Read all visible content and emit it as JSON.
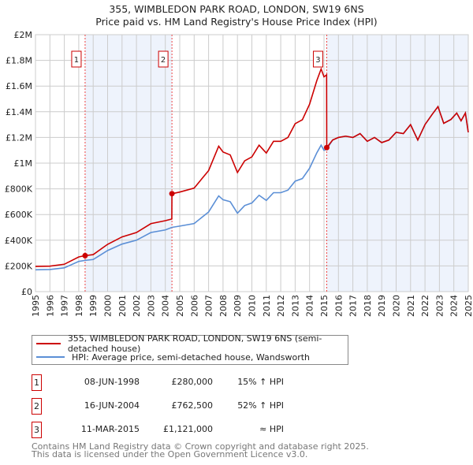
{
  "chart_data": {
    "type": "line",
    "title": "355, WIMBLEDON PARK ROAD, LONDON, SW19 6NS",
    "subtitle": "Price paid vs. HM Land Registry's House Price Index (HPI)",
    "xlim": [
      1995,
      2025
    ],
    "ylim": [
      0,
      2000000
    ],
    "yticks": [
      {
        "v": 0,
        "label": "£0"
      },
      {
        "v": 200000,
        "label": "£200K"
      },
      {
        "v": 400000,
        "label": "£400K"
      },
      {
        "v": 600000,
        "label": "£600K"
      },
      {
        "v": 800000,
        "label": "£800K"
      },
      {
        "v": 1000000,
        "label": "£1M"
      },
      {
        "v": 1200000,
        "label": "£1.2M"
      },
      {
        "v": 1400000,
        "label": "£1.4M"
      },
      {
        "v": 1600000,
        "label": "£1.6M"
      },
      {
        "v": 1800000,
        "label": "£1.8M"
      },
      {
        "v": 2000000,
        "label": "£2M"
      }
    ],
    "xticks": [
      "1995",
      "1996",
      "1997",
      "1998",
      "1999",
      "2000",
      "2001",
      "2002",
      "2003",
      "2004",
      "2005",
      "2006",
      "2007",
      "2008",
      "2009",
      "2010",
      "2011",
      "2012",
      "2013",
      "2014",
      "2015",
      "2016",
      "2017",
      "2018",
      "2019",
      "2020",
      "2021",
      "2022",
      "2023",
      "2024",
      "2025"
    ],
    "grid": true,
    "series": [
      {
        "name": "355, WIMBLEDON PARK ROAD, LONDON, SW19 6NS (semi-detached house)",
        "color": "#cc0000",
        "x": [
          1995,
          1996,
          1997,
          1998,
          1998.44,
          1999,
          2000,
          2001,
          2002,
          2003,
          2004,
          2004.45,
          2004.46,
          2005,
          2006,
          2007,
          2007.7,
          2008,
          2008.5,
          2009,
          2009.5,
          2010,
          2010.5,
          2011,
          2011.5,
          2012,
          2012.5,
          2013,
          2013.5,
          2014,
          2014.5,
          2014.8,
          2015,
          2015.18,
          2015.19,
          2015.6,
          2016,
          2016.5,
          2017,
          2017.5,
          2018,
          2018.5,
          2019,
          2019.5,
          2020,
          2020.5,
          2021,
          2021.5,
          2022,
          2022.5,
          2022.9,
          2023.3,
          2023.8,
          2024.2,
          2024.5,
          2024.8,
          2025
        ],
        "y": [
          196,
          198,
          213,
          270,
          280,
          288,
          368,
          426,
          460,
          529,
          552,
          565,
          762,
          775,
          806,
          942,
          1132,
          1087,
          1064,
          927,
          1018,
          1049,
          1140,
          1079,
          1170,
          1170,
          1200,
          1307,
          1338,
          1459,
          1642,
          1733,
          1672,
          1687,
          1121,
          1180,
          1200,
          1210,
          1200,
          1230,
          1170,
          1200,
          1160,
          1180,
          1240,
          1230,
          1300,
          1180,
          1300,
          1380,
          1440,
          1310,
          1340,
          1390,
          1330,
          1390,
          1240
        ]
      },
      {
        "name": "HPI: Average price, semi-detached house, Wandsworth",
        "color": "#5b8fd6",
        "x": [
          1995,
          1996,
          1997,
          1998,
          1998.44,
          1999,
          2000,
          2001,
          2002,
          2003,
          2004,
          2004.46,
          2005,
          2006,
          2007,
          2007.7,
          2008,
          2008.5,
          2009,
          2009.5,
          2010,
          2010.5,
          2011,
          2011.5,
          2012,
          2012.5,
          2013,
          2013.5,
          2014,
          2014.5,
          2014.8,
          2015,
          2015.19,
          2015.6,
          2016,
          2016.5,
          2017,
          2017.5,
          2018,
          2018.5,
          2019,
          2019.5,
          2020,
          2020.5,
          2021,
          2021.5,
          2022,
          2022.5,
          2022.9,
          2023.3,
          2023.8,
          2024.2,
          2024.5,
          2024.8,
          2025
        ],
        "y": [
          170,
          172,
          185,
          235,
          243,
          250,
          320,
          370,
          400,
          460,
          480,
          500,
          510,
          530,
          620,
          745,
          715,
          700,
          610,
          670,
          690,
          750,
          710,
          770,
          770,
          790,
          860,
          880,
          960,
          1080,
          1140,
          1100,
          1110,
          1180,
          1200,
          1210,
          1200,
          1230,
          1170,
          1200,
          1160,
          1180,
          1240,
          1230,
          1300,
          1180,
          1300,
          1380,
          1440,
          1310,
          1340,
          1390,
          1330,
          1390,
          1240
        ]
      }
    ],
    "y_units": "thousands GBP",
    "sales": [
      {
        "n": "1",
        "x": 1998.44,
        "y": 280
      },
      {
        "n": "2",
        "x": 2004.46,
        "y": 762.5
      },
      {
        "n": "3",
        "x": 2015.19,
        "y": 1121
      }
    ],
    "shaded_ranges": [
      [
        1998.44,
        2004.46
      ],
      [
        2015.19,
        2025
      ]
    ],
    "legend_placement": "below"
  },
  "table": [
    {
      "n": "1",
      "date": "08-JUN-1998",
      "price": "£280,000",
      "hpi": "15% ↑ HPI"
    },
    {
      "n": "2",
      "date": "16-JUN-2004",
      "price": "£762,500",
      "hpi": "52% ↑ HPI"
    },
    {
      "n": "3",
      "date": "11-MAR-2015",
      "price": "£1,121,000",
      "hpi": "≈ HPI"
    }
  ],
  "footer": [
    "Contains HM Land Registry data © Crown copyright and database right 2025.",
    "This data is licensed under the Open Government Licence v3.0."
  ]
}
